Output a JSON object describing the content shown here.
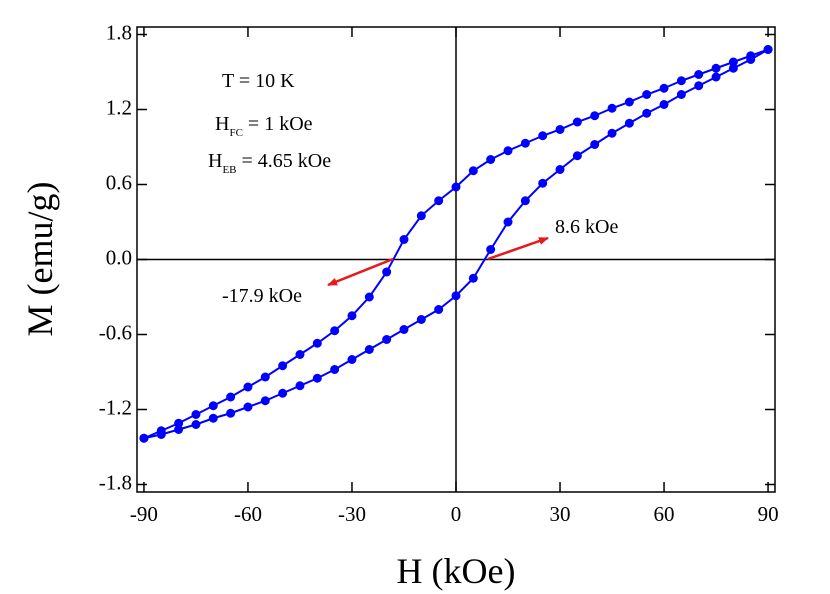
{
  "chart_data": {
    "type": "scatter",
    "x_label": "H (kOe)",
    "y_label": "M (emu/g)",
    "xlim": [
      -92,
      92
    ],
    "ylim": [
      -1.86,
      1.86
    ],
    "xticks": [
      -90,
      -60,
      -30,
      0,
      30,
      60,
      90
    ],
    "yticks": [
      1.8,
      1.2,
      0.6,
      {
        "value": 0,
        "label": "0.0"
      },
      -0.6,
      -1.2,
      -1.8
    ],
    "annotations": {
      "temperature": "T = 10 K",
      "hfc": {
        "symbol": "H",
        "subscript": "FC",
        "text": " = 1 kOe"
      },
      "heb": {
        "symbol": "H",
        "subscript": "EB",
        "text": " = 4.65 kOe"
      },
      "right_crossing": "8.6 kOe",
      "left_crossing": "-17.9 kOe"
    },
    "arrow_color": "#e41a1c",
    "series": [
      {
        "color": "#0000ff",
        "x": [
          90,
          85,
          80,
          75,
          70,
          65,
          60,
          55,
          50,
          45,
          40,
          35,
          30,
          25,
          20,
          15,
          10,
          5,
          0,
          -5,
          -10,
          -15,
          -20,
          -25,
          -30,
          -35,
          -40,
          -45,
          -50,
          -55,
          -60,
          -65,
          -70,
          -75,
          -80,
          -85,
          -90
        ],
        "values": [
          1.68,
          1.63,
          1.58,
          1.53,
          1.48,
          1.43,
          1.37,
          1.32,
          1.26,
          1.21,
          1.15,
          1.1,
          1.04,
          0.99,
          0.93,
          0.87,
          0.8,
          0.71,
          0.58,
          0.47,
          0.35,
          0.16,
          -0.1,
          -0.3,
          -0.45,
          -0.57,
          -0.67,
          -0.76,
          -0.85,
          -0.94,
          -1.02,
          -1.1,
          -1.17,
          -1.24,
          -1.31,
          -1.37,
          -1.43
        ]
      },
      {
        "color": "#0000ff",
        "x": [
          -90,
          -85,
          -80,
          -75,
          -70,
          -65,
          -60,
          -55,
          -50,
          -45,
          -40,
          -35,
          -30,
          -25,
          -20,
          -15,
          -10,
          -5,
          0,
          5,
          10,
          15,
          20,
          25,
          30,
          35,
          40,
          45,
          50,
          55,
          60,
          65,
          70,
          75,
          80,
          85,
          90
        ],
        "values": [
          -1.43,
          -1.4,
          -1.36,
          -1.32,
          -1.27,
          -1.23,
          -1.18,
          -1.13,
          -1.07,
          -1.01,
          -0.95,
          -0.88,
          -0.8,
          -0.72,
          -0.64,
          -0.56,
          -0.48,
          -0.4,
          -0.29,
          -0.15,
          0.08,
          0.3,
          0.47,
          0.61,
          0.72,
          0.83,
          0.92,
          1.01,
          1.09,
          1.17,
          1.24,
          1.32,
          1.39,
          1.46,
          1.53,
          1.6,
          1.68
        ]
      }
    ]
  }
}
